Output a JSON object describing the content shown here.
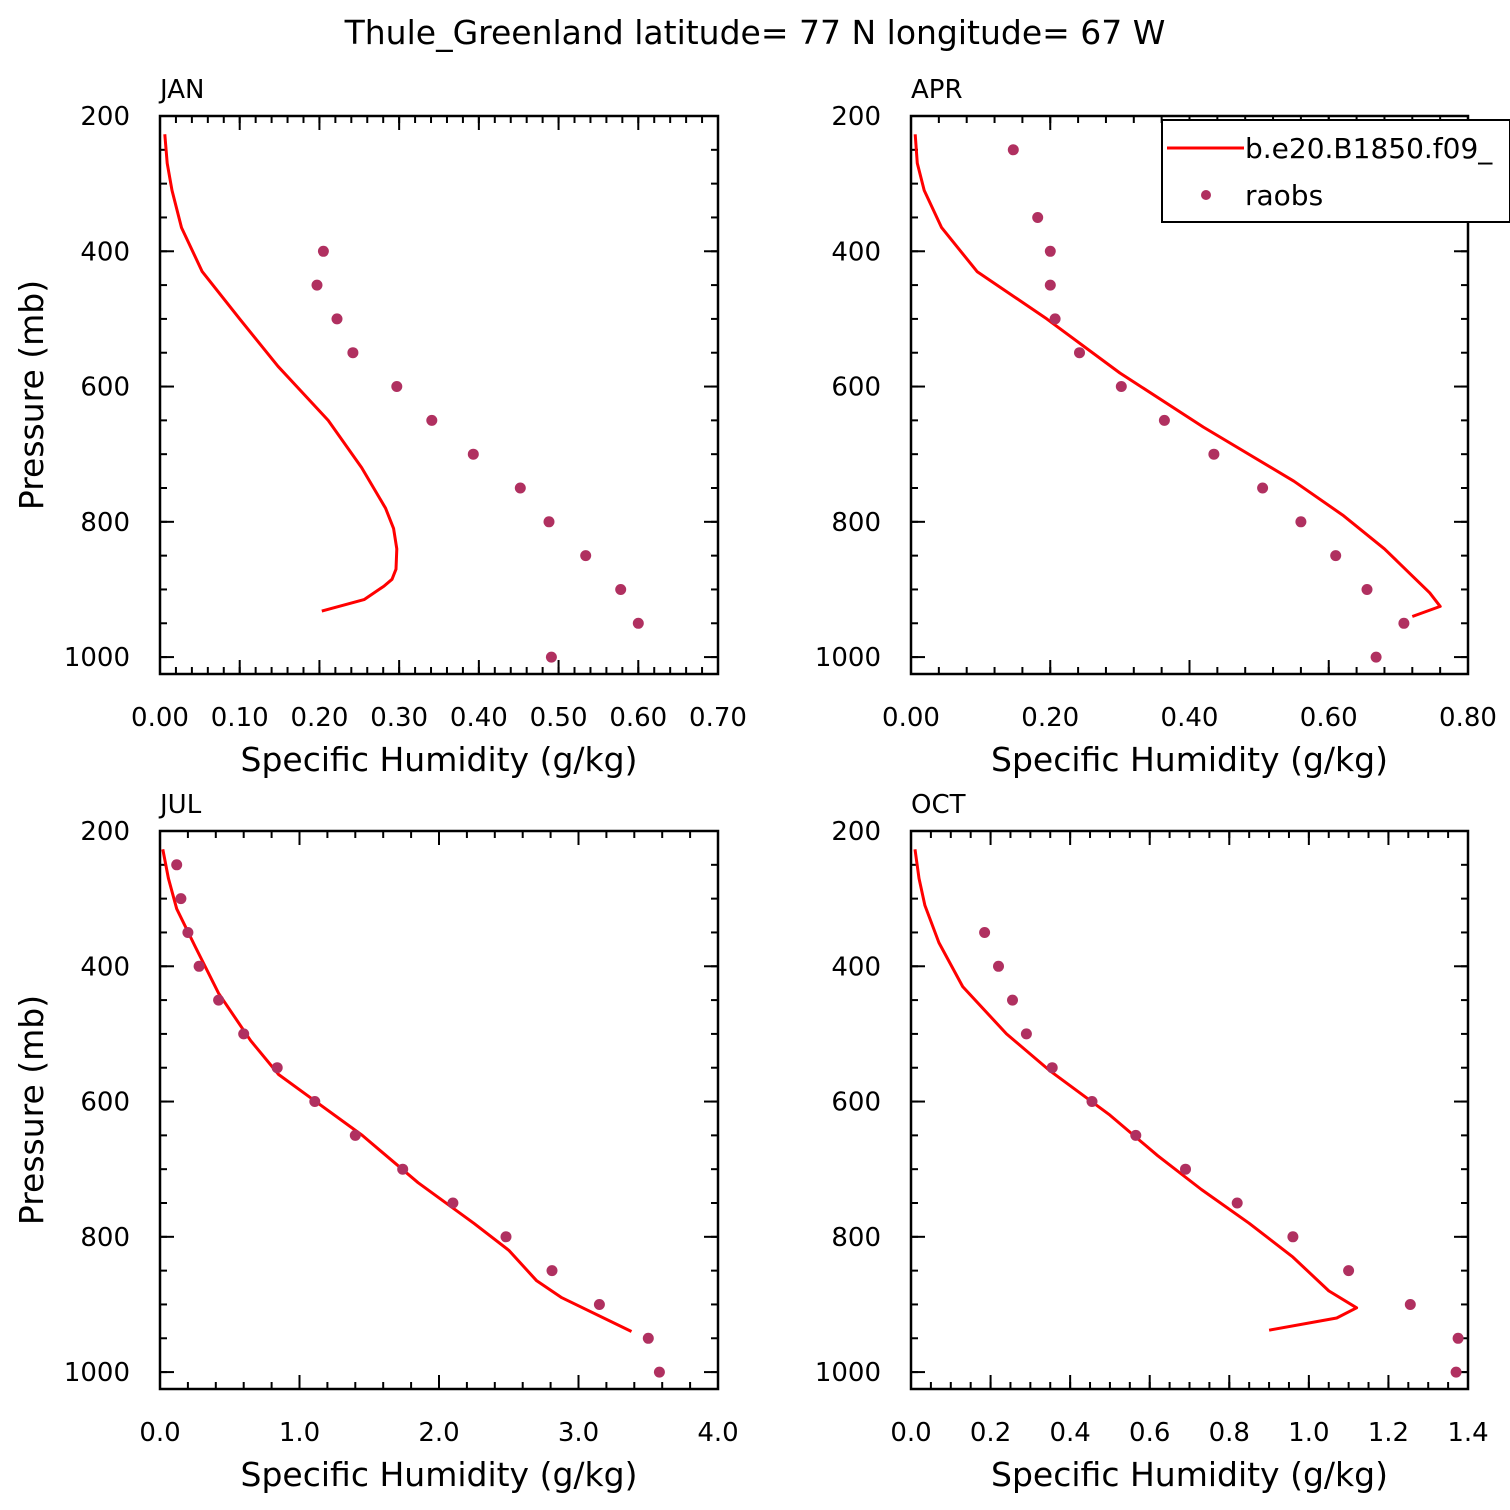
{
  "figure": {
    "title": "Thule_Greenland  latitude= 77 N longitude= 67 W"
  },
  "legend": {
    "entries": [
      {
        "label": "b.e20.B1850.f09_",
        "color": "#ff0000",
        "kind": "line"
      },
      {
        "label": "raobs",
        "color": "#b03060",
        "kind": "marker"
      }
    ]
  },
  "colors": {
    "model": "#ff0000",
    "obs": "#b03060",
    "axis": "#000000"
  },
  "chart_data": [
    {
      "type": "line",
      "title": "JAN",
      "xlabel": "Specific Humidity (g/kg)",
      "ylabel": "Pressure (mb)",
      "xlim": [
        0.0,
        0.7
      ],
      "ylim": [
        200,
        1025
      ],
      "y_inverted": true,
      "xticks": [
        0.0,
        0.1,
        0.2,
        0.3,
        0.4,
        0.5,
        0.6,
        0.7
      ],
      "xtick_labels": [
        "0.00",
        "0.10",
        "0.20",
        "0.30",
        "0.40",
        "0.50",
        "0.60",
        "0.70"
      ],
      "xminor_step": 0.02,
      "yticks": [
        200,
        400,
        600,
        800,
        1000
      ],
      "ytick_labels": [
        "200",
        "400",
        "600",
        "800",
        "1000"
      ],
      "yminor_step": 50,
      "series": [
        {
          "name": "b.e20.B1850.f09_",
          "style": "line",
          "x": [
            0.006,
            0.009,
            0.015,
            0.027,
            0.053,
            0.1,
            0.148,
            0.211,
            0.253,
            0.283,
            0.293,
            0.297,
            0.296,
            0.291,
            0.281,
            0.256,
            0.203
          ],
          "y": [
            227,
            270,
            310,
            365,
            430,
            500,
            570,
            650,
            720,
            780,
            810,
            840,
            870,
            885,
            895,
            915,
            932
          ]
        },
        {
          "name": "raobs",
          "style": "marker",
          "x": [
            0.205,
            0.197,
            0.222,
            0.242,
            0.297,
            0.341,
            0.393,
            0.452,
            0.488,
            0.534,
            0.578,
            0.6,
            0.491
          ],
          "y": [
            400,
            450,
            500,
            550,
            600,
            650,
            700,
            750,
            800,
            850,
            900,
            950,
            1000
          ]
        }
      ]
    },
    {
      "type": "line",
      "title": "APR",
      "xlabel": "Specific Humidity (g/kg)",
      "ylabel": "",
      "xlim": [
        0.0,
        0.8
      ],
      "ylim": [
        200,
        1025
      ],
      "y_inverted": true,
      "xticks": [
        0.0,
        0.2,
        0.4,
        0.6,
        0.8
      ],
      "xtick_labels": [
        "0.00",
        "0.20",
        "0.40",
        "0.60",
        "0.80"
      ],
      "xminor_step": 0.04,
      "yticks": [
        200,
        400,
        600,
        800,
        1000
      ],
      "ytick_labels": [
        "200",
        "400",
        "600",
        "800",
        "1000"
      ],
      "yminor_step": 50,
      "series": [
        {
          "name": "b.e20.B1850.f09_",
          "style": "line",
          "x": [
            0.006,
            0.009,
            0.019,
            0.044,
            0.095,
            0.195,
            0.3,
            0.42,
            0.55,
            0.62,
            0.68,
            0.72,
            0.745,
            0.76,
            0.72
          ],
          "y": [
            227,
            270,
            310,
            365,
            430,
            500,
            580,
            660,
            740,
            790,
            840,
            880,
            905,
            925,
            940
          ]
        },
        {
          "name": "raobs",
          "style": "marker",
          "x": [
            0.147,
            0.182,
            0.2,
            0.2,
            0.207,
            0.242,
            0.302,
            0.364,
            0.435,
            0.505,
            0.56,
            0.61,
            0.655,
            0.708,
            0.668
          ],
          "y": [
            250,
            350,
            400,
            450,
            500,
            550,
            600,
            650,
            700,
            750,
            800,
            850,
            900,
            950,
            1000
          ]
        }
      ]
    },
    {
      "type": "line",
      "title": "JUL",
      "xlabel": "Specific Humidity (g/kg)",
      "ylabel": "Pressure (mb)",
      "xlim": [
        0.0,
        4.0
      ],
      "ylim": [
        200,
        1025
      ],
      "y_inverted": true,
      "xticks": [
        0.0,
        1.0,
        2.0,
        3.0,
        4.0
      ],
      "xtick_labels": [
        "0.0",
        "1.0",
        "2.0",
        "3.0",
        "4.0"
      ],
      "xminor_step": 0.2,
      "yticks": [
        200,
        400,
        600,
        800,
        1000
      ],
      "ytick_labels": [
        "200",
        "400",
        "600",
        "800",
        "1000"
      ],
      "yminor_step": 50,
      "series": [
        {
          "name": "b.e20.B1850.f09_",
          "style": "line",
          "x": [
            0.02,
            0.06,
            0.12,
            0.25,
            0.42,
            0.65,
            0.85,
            1.05,
            1.45,
            1.85,
            2.25,
            2.5,
            2.7,
            2.88,
            3.38
          ],
          "y": [
            227,
            270,
            315,
            370,
            440,
            510,
            560,
            590,
            650,
            720,
            780,
            820,
            865,
            890,
            940
          ]
        },
        {
          "name": "raobs",
          "style": "marker",
          "x": [
            0.12,
            0.15,
            0.2,
            0.28,
            0.42,
            0.6,
            0.84,
            1.11,
            1.4,
            1.74,
            2.1,
            2.48,
            2.81,
            3.15,
            3.5,
            3.58
          ],
          "y": [
            250,
            300,
            350,
            400,
            450,
            500,
            550,
            600,
            650,
            700,
            750,
            800,
            850,
            900,
            950,
            1000
          ]
        }
      ]
    },
    {
      "type": "line",
      "title": "OCT",
      "xlabel": "Specific Humidity (g/kg)",
      "ylabel": "",
      "xlim": [
        0.0,
        1.4
      ],
      "ylim": [
        200,
        1025
      ],
      "y_inverted": true,
      "xticks": [
        0.0,
        0.2,
        0.4,
        0.6,
        0.8,
        1.0,
        1.2,
        1.4
      ],
      "xtick_labels": [
        "0.0",
        "0.2",
        "0.4",
        "0.6",
        "0.8",
        "1.0",
        "1.2",
        "1.4"
      ],
      "xminor_step": 0.05,
      "yticks": [
        200,
        400,
        600,
        800,
        1000
      ],
      "ytick_labels": [
        "200",
        "400",
        "600",
        "800",
        "1000"
      ],
      "yminor_step": 50,
      "series": [
        {
          "name": "b.e20.B1850.f09_",
          "style": "line",
          "x": [
            0.01,
            0.02,
            0.035,
            0.07,
            0.13,
            0.24,
            0.35,
            0.5,
            0.62,
            0.73,
            0.85,
            0.96,
            1.05,
            1.12,
            1.07,
            0.9
          ],
          "y": [
            227,
            270,
            310,
            365,
            430,
            500,
            555,
            620,
            680,
            730,
            780,
            830,
            880,
            905,
            920,
            938
          ]
        },
        {
          "name": "raobs",
          "style": "marker",
          "x": [
            0.185,
            0.22,
            0.255,
            0.29,
            0.355,
            0.455,
            0.565,
            0.69,
            0.82,
            0.96,
            1.1,
            1.255,
            1.375,
            1.37
          ],
          "y": [
            350,
            400,
            450,
            500,
            550,
            600,
            650,
            700,
            750,
            800,
            850,
            900,
            950,
            1000
          ]
        }
      ]
    }
  ]
}
